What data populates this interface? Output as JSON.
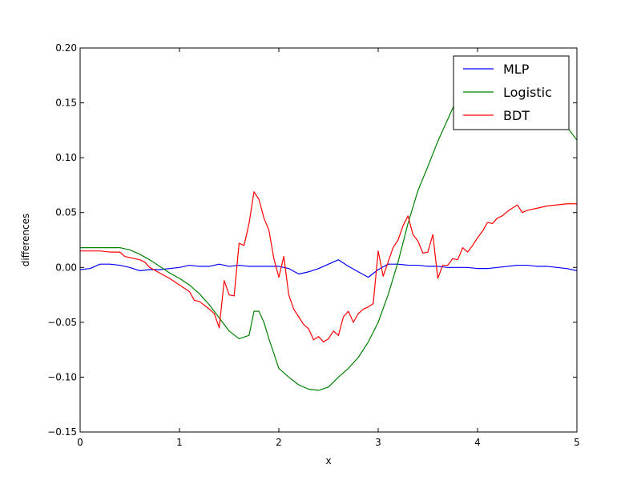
{
  "chart_data": {
    "type": "line",
    "title": "",
    "xlabel": "x",
    "ylabel": "differences",
    "xlim": [
      0,
      5
    ],
    "ylim": [
      -0.15,
      0.2
    ],
    "grid": false,
    "legend_placement": "top-right",
    "x_ticks": [
      0,
      1,
      2,
      3,
      4,
      5
    ],
    "x_tick_labels": [
      "0",
      "1",
      "2",
      "3",
      "4",
      "5"
    ],
    "y_ticks": [
      -0.15,
      -0.1,
      -0.05,
      0.0,
      0.05,
      0.1,
      0.15,
      0.2
    ],
    "y_tick_labels": [
      "−0.15",
      "−0.10",
      "−0.05",
      "0.00",
      "0.05",
      "0.10",
      "0.15",
      "0.20"
    ],
    "series": [
      {
        "name": "MLP",
        "color": "#0000ff",
        "x": [
          0,
          0.1,
          0.2,
          0.3,
          0.4,
          0.5,
          0.6,
          0.7,
          0.8,
          0.9,
          1.0,
          1.1,
          1.2,
          1.3,
          1.4,
          1.5,
          1.6,
          1.7,
          1.8,
          1.9,
          2.0,
          2.1,
          2.2,
          2.3,
          2.4,
          2.5,
          2.6,
          2.7,
          2.8,
          2.9,
          3.0,
          3.1,
          3.2,
          3.3,
          3.4,
          3.5,
          3.6,
          3.7,
          3.8,
          3.9,
          4.0,
          4.1,
          4.2,
          4.3,
          4.4,
          4.5,
          4.6,
          4.7,
          4.8,
          4.9,
          5.0
        ],
        "y": [
          -0.002,
          -0.001,
          0.003,
          0.003,
          0.002,
          0.0,
          -0.003,
          -0.002,
          -0.002,
          -0.001,
          0.0,
          0.002,
          0.001,
          0.001,
          0.003,
          0.001,
          0.002,
          0.001,
          0.001,
          0.001,
          0.001,
          -0.001,
          -0.006,
          -0.004,
          -0.001,
          0.003,
          0.007,
          0.001,
          -0.004,
          -0.009,
          -0.002,
          0.003,
          0.003,
          0.002,
          0.002,
          0.001,
          0.001,
          0.0,
          0.0,
          0.0,
          -0.001,
          -0.001,
          0.0,
          0.001,
          0.002,
          0.002,
          0.001,
          0.001,
          0.0,
          -0.001,
          -0.003
        ]
      },
      {
        "name": "Logistic",
        "color": "#008000",
        "x": [
          0,
          0.1,
          0.2,
          0.3,
          0.4,
          0.5,
          0.6,
          0.7,
          0.8,
          0.9,
          1.0,
          1.1,
          1.2,
          1.3,
          1.4,
          1.5,
          1.6,
          1.7,
          1.75,
          1.8,
          1.85,
          1.9,
          2.0,
          2.1,
          2.2,
          2.3,
          2.4,
          2.5,
          2.6,
          2.7,
          2.8,
          2.9,
          3.0,
          3.1,
          3.2,
          3.3,
          3.4,
          3.5,
          3.6,
          3.7,
          3.8,
          3.9,
          4.0,
          4.1,
          4.2,
          4.3,
          4.4,
          4.5,
          4.6,
          4.7,
          4.8,
          4.9,
          5.0
        ],
        "y": [
          0.018,
          0.018,
          0.018,
          0.018,
          0.018,
          0.016,
          0.012,
          0.007,
          0.001,
          -0.005,
          -0.01,
          -0.016,
          -0.024,
          -0.034,
          -0.046,
          -0.058,
          -0.065,
          -0.062,
          -0.04,
          -0.04,
          -0.05,
          -0.065,
          -0.092,
          -0.1,
          -0.107,
          -0.111,
          -0.112,
          -0.109,
          -0.1,
          -0.092,
          -0.082,
          -0.068,
          -0.05,
          -0.025,
          0.005,
          0.04,
          0.07,
          0.092,
          0.115,
          0.135,
          0.155,
          0.165,
          0.175,
          0.18,
          0.185,
          0.185,
          0.182,
          0.176,
          0.165,
          0.15,
          0.138,
          0.128,
          0.116
        ]
      },
      {
        "name": "BDT",
        "color": "#ff0000",
        "x": [
          0,
          0.1,
          0.2,
          0.3,
          0.4,
          0.45,
          0.5,
          0.6,
          0.65,
          0.7,
          0.8,
          0.9,
          1.0,
          1.1,
          1.15,
          1.2,
          1.3,
          1.35,
          1.4,
          1.45,
          1.5,
          1.55,
          1.6,
          1.65,
          1.7,
          1.75,
          1.8,
          1.85,
          1.9,
          1.95,
          2.0,
          2.05,
          2.1,
          2.15,
          2.2,
          2.25,
          2.3,
          2.35,
          2.4,
          2.45,
          2.5,
          2.55,
          2.6,
          2.65,
          2.7,
          2.75,
          2.8,
          2.85,
          2.9,
          2.95,
          3.0,
          3.05,
          3.1,
          3.15,
          3.2,
          3.25,
          3.3,
          3.35,
          3.4,
          3.45,
          3.5,
          3.55,
          3.6,
          3.65,
          3.7,
          3.75,
          3.8,
          3.85,
          3.9,
          3.95,
          4.0,
          4.05,
          4.1,
          4.15,
          4.2,
          4.25,
          4.3,
          4.35,
          4.4,
          4.45,
          4.5,
          4.6,
          4.7,
          4.8,
          4.9,
          5.0
        ],
        "y": [
          0.015,
          0.015,
          0.015,
          0.014,
          0.014,
          0.01,
          0.009,
          0.007,
          0.005,
          0.0,
          -0.005,
          -0.01,
          -0.016,
          -0.022,
          -0.03,
          -0.031,
          -0.038,
          -0.042,
          -0.055,
          -0.012,
          -0.025,
          -0.026,
          0.022,
          0.02,
          0.04,
          0.069,
          0.062,
          0.045,
          0.034,
          0.008,
          -0.009,
          0.01,
          -0.025,
          -0.038,
          -0.045,
          -0.052,
          -0.056,
          -0.066,
          -0.063,
          -0.068,
          -0.065,
          -0.058,
          -0.062,
          -0.045,
          -0.04,
          -0.05,
          -0.042,
          -0.038,
          -0.036,
          -0.033,
          0.015,
          -0.008,
          0.005,
          0.018,
          0.025,
          0.038,
          0.047,
          0.03,
          0.024,
          0.013,
          0.014,
          0.03,
          -0.01,
          0.002,
          0.002,
          0.008,
          0.007,
          0.018,
          0.014,
          0.02,
          0.027,
          0.033,
          0.041,
          0.04,
          0.045,
          0.047,
          0.051,
          0.054,
          0.057,
          0.05,
          0.052,
          0.054,
          0.056,
          0.057,
          0.058,
          0.058
        ]
      }
    ]
  }
}
